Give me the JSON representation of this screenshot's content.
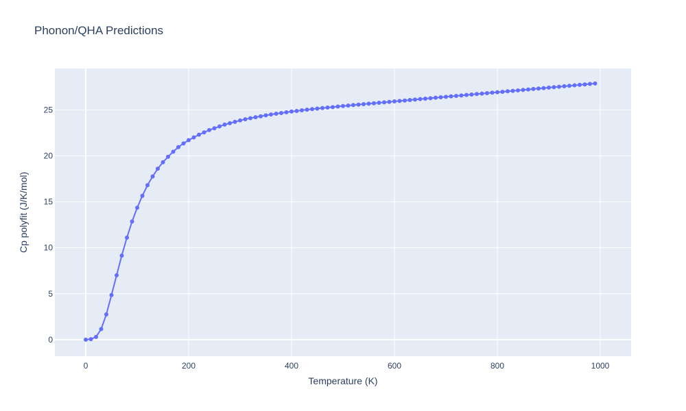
{
  "chart_data": {
    "type": "line",
    "title": "Phonon/QHA Predictions",
    "xlabel": "Temperature (K)",
    "ylabel": "Cp polyfit (J/K/mol)",
    "xlim": [
      -60,
      1060
    ],
    "ylim": [
      -1.8,
      29.5
    ],
    "x_ticks": [
      0,
      200,
      400,
      600,
      800,
      1000
    ],
    "y_ticks": [
      0,
      5,
      10,
      15,
      20,
      25
    ],
    "grid": true,
    "colors": {
      "series": "#636efa",
      "plot_bg": "#e5ecf6",
      "grid": "#ffffff",
      "text": "#2a3f5f"
    },
    "series": [
      {
        "mode": "lines+markers",
        "x": [
          0,
          10,
          20,
          30,
          40,
          50,
          60,
          70,
          80,
          90,
          100,
          110,
          120,
          130,
          140,
          150,
          160,
          170,
          180,
          190,
          200,
          210,
          220,
          230,
          240,
          250,
          260,
          270,
          280,
          290,
          300,
          310,
          320,
          330,
          340,
          350,
          360,
          370,
          380,
          390,
          400,
          410,
          420,
          430,
          440,
          450,
          460,
          470,
          480,
          490,
          500,
          510,
          520,
          530,
          540,
          550,
          560,
          570,
          580,
          590,
          600,
          610,
          620,
          630,
          640,
          650,
          660,
          670,
          680,
          690,
          700,
          710,
          720,
          730,
          740,
          750,
          760,
          770,
          780,
          790,
          800,
          810,
          820,
          830,
          840,
          850,
          860,
          870,
          880,
          890,
          900,
          910,
          920,
          930,
          940,
          950,
          960,
          970,
          980,
          990
        ],
        "y": [
          0.0,
          0.05,
          0.3,
          1.15,
          2.75,
          4.85,
          7.0,
          9.15,
          11.1,
          12.85,
          14.35,
          15.65,
          16.8,
          17.75,
          18.6,
          19.3,
          19.9,
          20.45,
          20.95,
          21.35,
          21.7,
          22.0,
          22.3,
          22.55,
          22.8,
          23.0,
          23.2,
          23.4,
          23.55,
          23.7,
          23.85,
          23.98,
          24.1,
          24.2,
          24.3,
          24.4,
          24.5,
          24.58,
          24.66,
          24.74,
          24.82,
          24.88,
          24.95,
          25.02,
          25.08,
          25.14,
          25.2,
          25.25,
          25.3,
          25.36,
          25.42,
          25.47,
          25.52,
          25.57,
          25.62,
          25.67,
          25.72,
          25.77,
          25.82,
          25.87,
          25.92,
          25.97,
          26.02,
          26.07,
          26.12,
          26.17,
          26.22,
          26.27,
          26.32,
          26.37,
          26.42,
          26.47,
          26.52,
          26.57,
          26.62,
          26.67,
          26.72,
          26.77,
          26.82,
          26.87,
          26.92,
          26.97,
          27.02,
          27.07,
          27.12,
          27.17,
          27.22,
          27.27,
          27.32,
          27.37,
          27.42,
          27.47,
          27.52,
          27.57,
          27.62,
          27.67,
          27.72,
          27.77,
          27.82,
          27.87
        ]
      }
    ]
  }
}
